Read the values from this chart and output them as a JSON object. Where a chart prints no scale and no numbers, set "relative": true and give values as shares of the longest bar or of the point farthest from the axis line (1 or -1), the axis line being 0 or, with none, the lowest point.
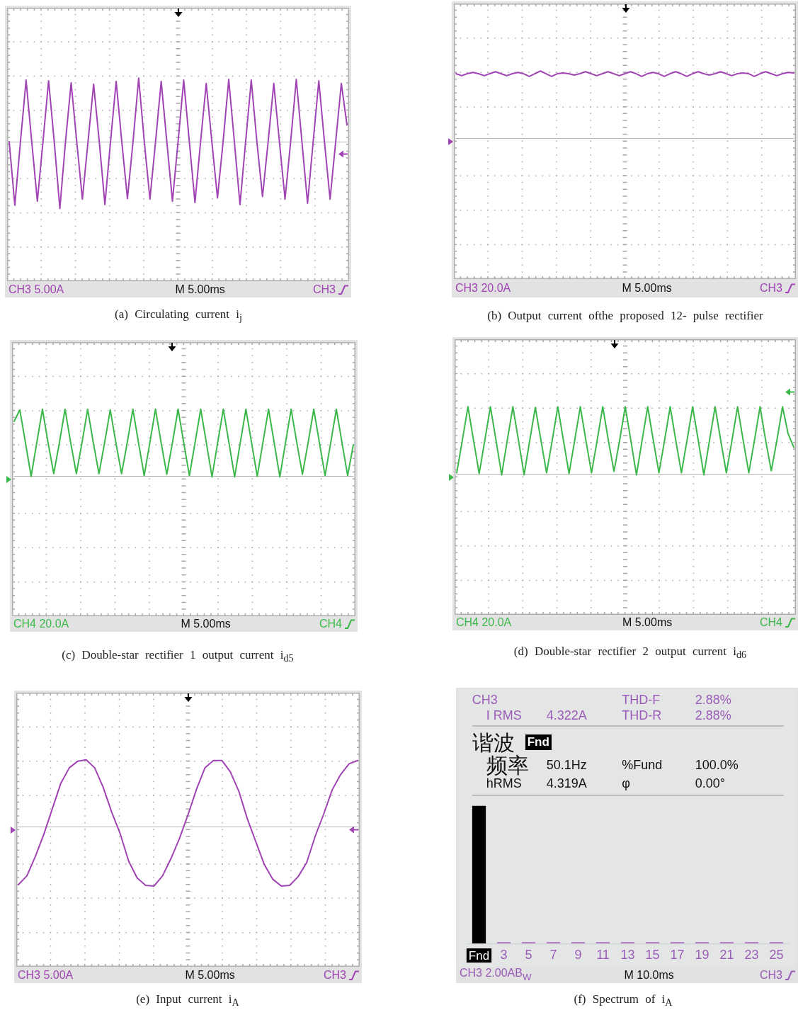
{
  "chart_data": [
    {
      "type": "line",
      "relative": true,
      "grid": true,
      "color": "#a044b4",
      "categories": [
        null,
        null,
        null,
        null,
        null,
        null,
        null,
        null,
        null,
        null,
        null,
        null,
        null,
        null,
        null,
        null,
        null,
        null,
        null,
        null,
        null,
        null,
        null,
        null,
        null,
        null,
        null,
        null,
        null,
        null,
        null,
        null,
        null,
        null,
        null,
        null,
        null,
        null,
        null,
        null,
        null,
        null,
        null,
        null,
        null,
        null,
        null,
        null,
        null,
        null,
        null,
        null,
        null,
        null,
        null,
        null,
        null,
        null,
        null,
        null,
        null
      ],
      "values": [
        0,
        -0.95,
        0,
        0.92,
        0,
        -0.89,
        0,
        0.91,
        0,
        -1,
        0,
        0.88,
        0,
        -0.86,
        0,
        0.86,
        0,
        -0.94,
        0,
        0.9,
        0,
        -0.85,
        0,
        0.95,
        0,
        -0.86,
        0,
        0.9,
        0,
        -0.89,
        0,
        0.92,
        0,
        -0.91,
        0,
        0.87,
        0,
        -0.84,
        0,
        0.93,
        0,
        -0.94,
        0,
        0.92,
        0,
        -0.82,
        0,
        0.87,
        0,
        -0.86,
        0,
        0.93,
        0,
        -0.92,
        0,
        0.91,
        0,
        -0.86,
        0,
        0.87,
        0.25
      ],
      "annotations": [
        "(a) Circulating current i$_{j}$",
        "CH3 5.00A",
        "M 5.00ms",
        "CH3"
      ]
    },
    {
      "type": "line",
      "relative": true,
      "grid": true,
      "color": "#a044b4",
      "categories": [
        null,
        null,
        null,
        null,
        null,
        null,
        null,
        null,
        null,
        null,
        null,
        null,
        null,
        null,
        null,
        null,
        null,
        null,
        null,
        null,
        null,
        null,
        null,
        null,
        null,
        null,
        null,
        null,
        null,
        null,
        null,
        null,
        null,
        null,
        null,
        null,
        null,
        null,
        null,
        null,
        null,
        null,
        null,
        null,
        null,
        null,
        null,
        null,
        null,
        null,
        null,
        null,
        null,
        null,
        null,
        null,
        null,
        null,
        null,
        null,
        null
      ],
      "values": [
        0.96,
        0.93,
        0.96,
        0.98,
        0.96,
        0.93,
        0.96,
        0.99,
        0.96,
        0.93,
        0.96,
        0.98,
        0.96,
        0.92,
        0.96,
        1,
        0.96,
        0.92,
        0.96,
        0.97,
        0.96,
        0.94,
        0.96,
        0.99,
        0.96,
        0.93,
        0.96,
        0.99,
        0.96,
        0.93,
        0.96,
        0.99,
        0.96,
        0.92,
        0.96,
        0.98,
        0.96,
        0.92,
        0.96,
        0.99,
        0.96,
        0.92,
        0.96,
        0.99,
        0.96,
        0.94,
        0.96,
        0.99,
        0.96,
        0.93,
        0.96,
        0.97,
        0.96,
        0.92,
        0.96,
        0.99,
        0.96,
        0.93,
        0.96,
        0.98,
        0.97
      ],
      "annotations": [
        "(b) Output current ofthe proposed 12- pulse rectifier",
        "CH3 20.0A",
        "M 5.00ms",
        "CH3"
      ]
    },
    {
      "type": "line",
      "relative": true,
      "grid": true,
      "color": "#3cb84a",
      "categories": [
        null,
        null,
        null,
        null,
        null,
        null,
        null,
        null,
        null,
        null,
        null,
        null,
        null,
        null,
        null,
        null,
        null,
        null,
        null,
        null,
        null,
        null,
        null,
        null,
        null,
        null,
        null,
        null,
        null,
        null,
        null,
        null,
        null,
        null,
        null,
        null,
        null,
        null,
        null,
        null,
        null,
        null,
        null,
        null,
        null,
        null,
        null,
        null,
        null,
        null,
        null,
        null,
        null,
        null,
        null,
        null,
        null,
        null,
        null,
        null,
        null
      ],
      "values": [
        0.82,
        0.99,
        0.5,
        0,
        0.5,
        1,
        0.5,
        0.04,
        0.5,
        1,
        0.5,
        0.04,
        0.5,
        1,
        0.5,
        0.04,
        0.5,
        0.99,
        0.5,
        0.04,
        0.5,
        1,
        0.5,
        0.01,
        0.5,
        1,
        0.5,
        0.03,
        0.5,
        1,
        0.5,
        0.01,
        0.5,
        1,
        0.5,
        -0.01,
        0.5,
        1,
        0.5,
        -0.01,
        0.5,
        1,
        0.5,
        0,
        0.5,
        1,
        0.5,
        -0.01,
        0.5,
        1,
        0.5,
        0.03,
        0.5,
        1,
        0.5,
        0.01,
        0.5,
        1,
        0.5,
        0.01,
        0.47
      ],
      "annotations": [
        "(c) Double-star rectifier 1 output current i$_{d5}$",
        "CH4 20.0A",
        "M 5.00ms",
        "CH4"
      ]
    },
    {
      "type": "line",
      "relative": true,
      "grid": true,
      "color": "#3cb84a",
      "categories": [
        null,
        null,
        null,
        null,
        null,
        null,
        null,
        null,
        null,
        null,
        null,
        null,
        null,
        null,
        null,
        null,
        null,
        null,
        null,
        null,
        null,
        null,
        null,
        null,
        null,
        null,
        null,
        null,
        null,
        null,
        null,
        null,
        null,
        null,
        null,
        null,
        null,
        null,
        null,
        null,
        null,
        null,
        null,
        null,
        null,
        null,
        null,
        null,
        null,
        null,
        null,
        null,
        null,
        null,
        null,
        null,
        null,
        null,
        null,
        null,
        null
      ],
      "values": [
        0.02,
        0.5,
        1,
        0.5,
        0.01,
        0.5,
        1,
        0.5,
        -0.01,
        0.5,
        1,
        0.5,
        -0.01,
        0.5,
        0.99,
        0.5,
        0.02,
        0.5,
        1,
        0.5,
        0.01,
        0.5,
        1,
        0.5,
        0.02,
        0.5,
        1,
        0.5,
        0.04,
        0.5,
        1,
        0.5,
        -0.01,
        0.5,
        1,
        0.5,
        0.02,
        0.5,
        1,
        0.5,
        0.02,
        0.5,
        1,
        0.5,
        -0.01,
        0.5,
        1,
        0.5,
        0.02,
        0.5,
        1,
        0.5,
        0.02,
        0.5,
        1,
        0.5,
        0.05,
        0.5,
        1,
        0.6,
        0.4
      ],
      "annotations": [
        "(d) Double-star rectifier 2 output current i$_{d6}$",
        "CH4 20.0A",
        "M 5.00ms",
        "CH4"
      ]
    },
    {
      "type": "line",
      "relative": true,
      "grid": true,
      "color": "#a044b4",
      "categories": [
        null,
        null,
        null,
        null,
        null,
        null,
        null,
        null,
        null,
        null,
        null,
        null,
        null,
        null,
        null,
        null,
        null,
        null,
        null,
        null,
        null,
        null,
        null,
        null,
        null,
        null,
        null,
        null,
        null,
        null,
        null,
        null,
        null,
        null,
        null,
        null,
        null,
        null,
        null,
        null,
        null
      ],
      "values": [
        -0.86,
        -0.73,
        -0.44,
        -0.11,
        0.27,
        0.65,
        0.88,
        0.98,
        1,
        0.88,
        0.59,
        0.22,
        -0.1,
        -0.51,
        -0.76,
        -0.87,
        -0.88,
        -0.73,
        -0.47,
        -0.17,
        0.18,
        0.56,
        0.88,
        0.99,
        0.99,
        0.82,
        0.53,
        0.12,
        -0.22,
        -0.56,
        -0.78,
        -0.88,
        -0.87,
        -0.74,
        -0.53,
        -0.14,
        0.19,
        0.55,
        0.78,
        0.94,
        0.99
      ],
      "annotations": [
        "(e) Input current i$_{A}$",
        "CH3 5.00A",
        "M 5.00ms",
        "CH3"
      ]
    },
    {
      "type": "bar",
      "relative": true,
      "categories": [
        "Fnd",
        "3",
        "5",
        "7",
        "9",
        "11",
        "13",
        "15",
        "17",
        "19",
        "21",
        "23",
        "25"
      ],
      "values": [
        1,
        0.01,
        0.01,
        0.01,
        0.01,
        0.01,
        0.01,
        0.01,
        0.01,
        0.01,
        0.01,
        0.01,
        0.01
      ],
      "colors": [
        "#000000",
        "#b27cc8",
        "#b27cc8",
        "#b27cc8",
        "#b27cc8",
        "#b27cc8",
        "#b27cc8",
        "#b27cc8",
        "#b27cc8",
        "#b27cc8",
        "#b27cc8",
        "#b27cc8",
        "#b27cc8"
      ],
      "annotations": [
        "(f) Spectrum of i$_{A}$",
        "CH3 2.00AB$_{W}$",
        "M 10.0ms",
        "CH3",
        "CH3",
        "I RMS",
        "4.322A",
        "THD-F",
        "2.88%",
        "THD-R",
        "2.88%",
        "谐波",
        "Fnd",
        "频率",
        "50.1Hz",
        "%Fund",
        "100.0%",
        "hRMS",
        "4.319A",
        "φ",
        "0.00°"
      ]
    }
  ]
}
